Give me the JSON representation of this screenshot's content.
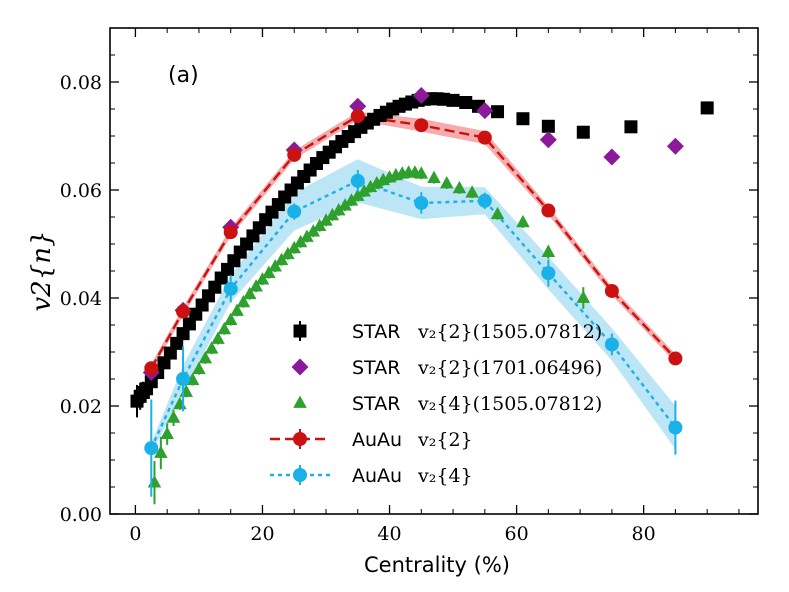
{
  "chart_data": {
    "type": "scatter",
    "panel_label": "(a)",
    "xlabel": "Centrality (%)",
    "ylabel": "v2{n}",
    "xlim": [
      -4,
      98
    ],
    "ylim": [
      0.0,
      0.09
    ],
    "xticks": [
      0,
      20,
      40,
      60,
      80
    ],
    "yticks": [
      0.0,
      0.02,
      0.04,
      0.06,
      0.08
    ],
    "ytick_labels": [
      "0.00",
      "0.02",
      "0.04",
      "0.06",
      "0.08"
    ],
    "legend_position": "lower-center",
    "series": [
      {
        "name": "STAR v2{2}(1505.07812)",
        "legend_prefix": "STAR",
        "legend_math": "v₂{2}(1505.07812)",
        "marker": "square",
        "color": "#000000",
        "x": [
          0.25,
          0.75,
          1.25,
          1.75,
          2.5,
          3.5,
          4.5,
          5.5,
          6.5,
          7.5,
          8.5,
          9.5,
          10.5,
          11.5,
          12.5,
          13.5,
          14.5,
          15.5,
          16.5,
          17.5,
          18.5,
          19.5,
          20.5,
          21.5,
          22.5,
          23.5,
          24.5,
          25.5,
          26.5,
          27.5,
          28.5,
          29.5,
          30.5,
          31.5,
          32.5,
          33.5,
          34.5,
          35.5,
          36.5,
          37.5,
          38.5,
          39.5,
          40.5,
          41.5,
          42.5,
          43.5,
          44.5,
          45.5,
          46.5,
          47.5,
          48.5,
          50,
          52,
          54,
          57,
          61,
          65,
          70.5,
          78,
          90
        ],
        "y": [
          0.0209,
          0.0218,
          0.0225,
          0.0232,
          0.0245,
          0.0262,
          0.028,
          0.0298,
          0.0316,
          0.0334,
          0.0352,
          0.037,
          0.0387,
          0.0404,
          0.042,
          0.0437,
          0.0453,
          0.0469,
          0.0485,
          0.05,
          0.0515,
          0.053,
          0.0545,
          0.0559,
          0.0573,
          0.0587,
          0.06,
          0.0613,
          0.0625,
          0.0637,
          0.0649,
          0.066,
          0.067,
          0.068,
          0.069,
          0.0699,
          0.0708,
          0.0716,
          0.0724,
          0.0731,
          0.0738,
          0.0744,
          0.075,
          0.0755,
          0.0759,
          0.0763,
          0.0766,
          0.0768,
          0.0769,
          0.0769,
          0.0768,
          0.0766,
          0.0762,
          0.0755,
          0.0745,
          0.0732,
          0.0718,
          0.0707,
          0.0717,
          0.0752
        ],
        "err": [
          0.003,
          0.0025,
          0.002,
          0.0015,
          0.0012,
          0.001,
          0.001,
          0.001,
          0.001,
          0.001,
          0.001,
          0.001,
          0.001,
          0.001,
          0.001,
          0.001,
          0.001,
          0.001,
          0.001,
          0.001,
          0.001,
          0.001,
          0.001,
          0.001,
          0.001,
          0.001,
          0.001,
          0.001,
          0.001,
          0.001,
          0.001,
          0.001,
          0.001,
          0.001,
          0.001,
          0.001,
          0.001,
          0.001,
          0.001,
          0.001,
          0.001,
          0.001,
          0.001,
          0.001,
          0.001,
          0.001,
          0.001,
          0.001,
          0.001,
          0.001,
          0.001,
          0.001,
          0.001,
          0.001,
          0.001,
          0.001,
          0.001,
          0.001,
          0.001,
          0.001
        ]
      },
      {
        "name": "STAR v2{2}(1701.06496)",
        "legend_prefix": "STAR",
        "legend_math": "v₂{2}(1701.06496)",
        "marker": "diamond",
        "color": "#8b1a9b",
        "x": [
          2.5,
          7.5,
          15,
          25,
          35,
          45,
          55,
          65,
          75,
          85
        ],
        "y": [
          0.0262,
          0.0377,
          0.0531,
          0.0674,
          0.0755,
          0.0775,
          0.0747,
          0.0693,
          0.0661,
          0.0681
        ],
        "err": [
          0,
          0,
          0,
          0,
          0,
          0,
          0,
          0,
          0,
          0
        ]
      },
      {
        "name": "STAR v2{4}(1505.07812)",
        "legend_prefix": "STAR",
        "legend_math": "v₂{4}(1505.07812)",
        "marker": "triangle",
        "color": "#2da02d",
        "x": [
          3,
          4,
          5,
          6,
          7,
          8,
          9,
          10,
          11,
          12,
          13,
          14,
          15,
          16,
          17,
          18,
          19,
          20,
          21,
          22,
          23,
          24,
          25,
          26,
          27,
          28,
          29,
          30,
          31,
          32,
          33,
          34,
          35,
          36,
          37,
          38,
          39,
          40,
          41,
          42,
          43,
          44,
          45,
          47,
          49,
          51,
          53,
          57,
          61,
          65,
          70.5
        ],
        "y": [
          0.0058,
          0.0113,
          0.0148,
          0.0178,
          0.0203,
          0.0226,
          0.0248,
          0.0268,
          0.0288,
          0.0306,
          0.0324,
          0.0342,
          0.0359,
          0.0376,
          0.0392,
          0.0407,
          0.0421,
          0.0434,
          0.0446,
          0.0458,
          0.047,
          0.0481,
          0.0492,
          0.0503,
          0.0513,
          0.0523,
          0.0533,
          0.0543,
          0.0553,
          0.0562,
          0.0571,
          0.058,
          0.0589,
          0.0597,
          0.0605,
          0.0612,
          0.0618,
          0.0623,
          0.0627,
          0.063,
          0.0632,
          0.0632,
          0.063,
          0.0622,
          0.0612,
          0.0603,
          0.0595,
          0.0555,
          0.054,
          0.0485,
          0.04
        ],
        "err": [
          0.004,
          0.003,
          0.002,
          0.0015,
          0.001,
          0.001,
          0.001,
          0.001,
          0.001,
          0.001,
          0.001,
          0.001,
          0.001,
          0.001,
          0.001,
          0.001,
          0.001,
          0.001,
          0.001,
          0.001,
          0.001,
          0.001,
          0.001,
          0.001,
          0.001,
          0.001,
          0.001,
          0.001,
          0.001,
          0.001,
          0.001,
          0.001,
          0.001,
          0.001,
          0.001,
          0.001,
          0.001,
          0.001,
          0.001,
          0.001,
          0.001,
          0.001,
          0.001,
          0.001,
          0.001,
          0.001,
          0.001,
          0.001,
          0.001,
          0.0012,
          0.002
        ]
      },
      {
        "name": "AuAu v2{2}",
        "legend_prefix": "AuAu",
        "legend_math": "v₂{2}",
        "marker": "circle",
        "line": "dashed",
        "color": "#cc1111",
        "band_color": "#f09090",
        "x": [
          2.5,
          7.5,
          15,
          25,
          35,
          45,
          55,
          65,
          75,
          85
        ],
        "y": [
          0.027,
          0.0375,
          0.0522,
          0.0665,
          0.0737,
          0.072,
          0.0697,
          0.0562,
          0.0413,
          0.0288
        ],
        "err": [
          0.001,
          0.001,
          0.001,
          0.0012,
          0.0012,
          0.0012,
          0.0012,
          0.001,
          0.001,
          0.0008
        ],
        "band": [
          0.0008,
          0.0008,
          0.0008,
          0.0008,
          0.0008,
          0.0012,
          0.0012,
          0.0008,
          0.0008,
          0.0008
        ]
      },
      {
        "name": "AuAu v2{4}",
        "legend_prefix": "AuAu",
        "legend_math": "v₂{4}",
        "marker": "circle",
        "line": "dotted",
        "color": "#1ab0e8",
        "band_color": "#a6dcf2",
        "x": [
          2.5,
          7.5,
          15,
          25,
          35,
          45,
          55,
          65,
          75,
          85
        ],
        "y": [
          0.0122,
          0.025,
          0.0417,
          0.056,
          0.0617,
          0.0576,
          0.058,
          0.0446,
          0.0314,
          0.016
        ],
        "err": [
          0.009,
          0.006,
          0.0025,
          0.0015,
          0.002,
          0.002,
          0.0015,
          0.0025,
          0.002,
          0.005
        ],
        "band": [
          0.001,
          0.0025,
          0.0025,
          0.0035,
          0.004,
          0.003,
          0.0025,
          0.003,
          0.003,
          0.004
        ]
      }
    ]
  }
}
